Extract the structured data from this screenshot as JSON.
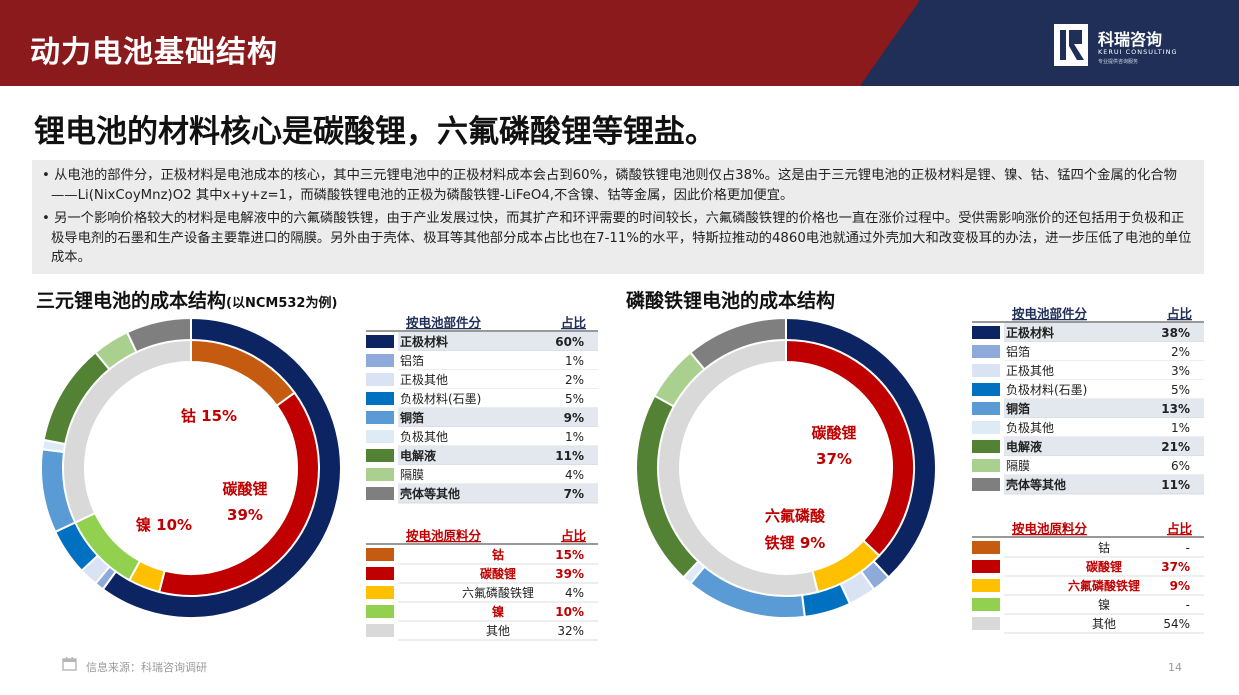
{
  "header": {
    "title": "动力电池基础结构",
    "logo_cn": "科瑞咨询",
    "logo_en": "KERUI CONSULTING",
    "logo_tag": "专业提供咨询服务"
  },
  "headline": "锂电池的材料核心是碳酸锂，六氟磷酸锂等锂盐。",
  "notes": [
    "• 从电池的部件分，正极材料是电池成本的核心，其中三元锂电池中的正极材料成本会占到60%，磷酸铁锂电池则仅占38%。这是由于三元锂电池的正极材料是锂、镍、钴、锰四个金属的化合物——Li(NixCoyMnz)O2 其中x+y+z=1，而磷酸铁锂电池的正极为磷酸铁锂-LiFeO4,不含镍、钴等金属，因此价格更加便宜。",
    "• 另一个影响价格较大的材料是电解液中的六氟磷酸铁锂，由于产业发展过快，而其扩产和环评需要的时间较长，六氟磷酸铁锂的价格也一直在涨价过程中。受供需影响涨价的还包括用于负极和正极导电剂的石墨和生产设备主要靠进口的隔膜。另外由于壳体、极耳等其他部分成本占比也在7-11%的水平，特斯拉推动的4860电池就通过外壳加大和改变极耳的办法，进一步压低了电池的单位成本。"
  ],
  "footer": {
    "source": "信息来源：科瑞咨询调研",
    "page": "14"
  },
  "chart_data": [
    {
      "type": "pie",
      "title": "三元锂电池的成本结构",
      "title_suffix": "(以NCM532为例)",
      "component_header": "按电池部件分",
      "share_header": "占比",
      "components": [
        {
          "name": "正极材料",
          "value": 60,
          "label": "60%",
          "color": "#0c2461",
          "bold": true
        },
        {
          "name": "铝箔",
          "value": 1,
          "label": "1%",
          "color": "#8eaadb",
          "bold": false
        },
        {
          "name": "正极其他",
          "value": 2,
          "label": "2%",
          "color": "#dae3f3",
          "bold": false
        },
        {
          "name": "负极材料(石墨)",
          "value": 5,
          "label": "5%",
          "color": "#0070c0",
          "bold": false
        },
        {
          "name": "铜箔",
          "value": 9,
          "label": "9%",
          "color": "#5b9bd5",
          "bold": true
        },
        {
          "name": "负极其他",
          "value": 1,
          "label": "1%",
          "color": "#ddebf7",
          "bold": false
        },
        {
          "name": "电解液",
          "value": 11,
          "label": "11%",
          "color": "#548235",
          "bold": true
        },
        {
          "name": "隔膜",
          "value": 4,
          "label": "4%",
          "color": "#a9d08e",
          "bold": false
        },
        {
          "name": "壳体等其他",
          "value": 7,
          "label": "7%",
          "color": "#7f7f7f",
          "bold": true
        }
      ],
      "material_header": "按电池原料分",
      "materials": [
        {
          "name": "钴",
          "value": 15,
          "label": "15%",
          "color": "#c55a11",
          "red": true
        },
        {
          "name": "碳酸锂",
          "value": 39,
          "label": "39%",
          "color": "#c00000",
          "red": true
        },
        {
          "name": "六氟磷酸铁锂",
          "value": 4,
          "label": "4%",
          "color": "#ffc000",
          "red": false
        },
        {
          "name": "镍",
          "value": 10,
          "label": "10%",
          "color": "#92d050",
          "red": true
        },
        {
          "name": "其他",
          "value": 32,
          "label": "32%",
          "color": "#d9d9d9",
          "red": false
        }
      ],
      "inner_labels": [
        {
          "text": "钴 15%"
        },
        {
          "text": "碳酸锂"
        },
        {
          "text": "39%"
        },
        {
          "text": "镍 10%"
        }
      ]
    },
    {
      "type": "pie",
      "title": "磷酸铁锂电池的成本结构",
      "component_header": "按电池部件分",
      "share_header": "占比",
      "components": [
        {
          "name": "正极材料",
          "value": 38,
          "label": "38%",
          "color": "#0c2461",
          "bold": true
        },
        {
          "name": "铝箔",
          "value": 2,
          "label": "2%",
          "color": "#8eaadb",
          "bold": false
        },
        {
          "name": "正极其他",
          "value": 3,
          "label": "3%",
          "color": "#dae3f3",
          "bold": false
        },
        {
          "name": "负极材料(石墨)",
          "value": 5,
          "label": "5%",
          "color": "#0070c0",
          "bold": false
        },
        {
          "name": "铜箔",
          "value": 13,
          "label": "13%",
          "color": "#5b9bd5",
          "bold": true
        },
        {
          "name": "负极其他",
          "value": 1,
          "label": "1%",
          "color": "#ddebf7",
          "bold": false
        },
        {
          "name": "电解液",
          "value": 21,
          "label": "21%",
          "color": "#548235",
          "bold": true
        },
        {
          "name": "隔膜",
          "value": 6,
          "label": "6%",
          "color": "#a9d08e",
          "bold": false
        },
        {
          "name": "壳体等其他",
          "value": 11,
          "label": "11%",
          "color": "#7f7f7f",
          "bold": true
        }
      ],
      "material_header": "按电池原料分",
      "materials": [
        {
          "name": "钴",
          "value": 0,
          "label": "-",
          "color": "#c55a11",
          "red": false
        },
        {
          "name": "碳酸锂",
          "value": 37,
          "label": "37%",
          "color": "#c00000",
          "red": true
        },
        {
          "name": "六氟磷酸铁锂",
          "value": 9,
          "label": "9%",
          "color": "#ffc000",
          "red": true
        },
        {
          "name": "镍",
          "value": 0,
          "label": "-",
          "color": "#92d050",
          "red": false
        },
        {
          "name": "其他",
          "value": 54,
          "label": "54%",
          "color": "#d9d9d9",
          "red": false
        }
      ],
      "inner_labels": [
        {
          "text": "碳酸锂"
        },
        {
          "text": "37%"
        },
        {
          "text": "六氟磷酸"
        },
        {
          "text": "铁锂 9%"
        }
      ]
    }
  ]
}
